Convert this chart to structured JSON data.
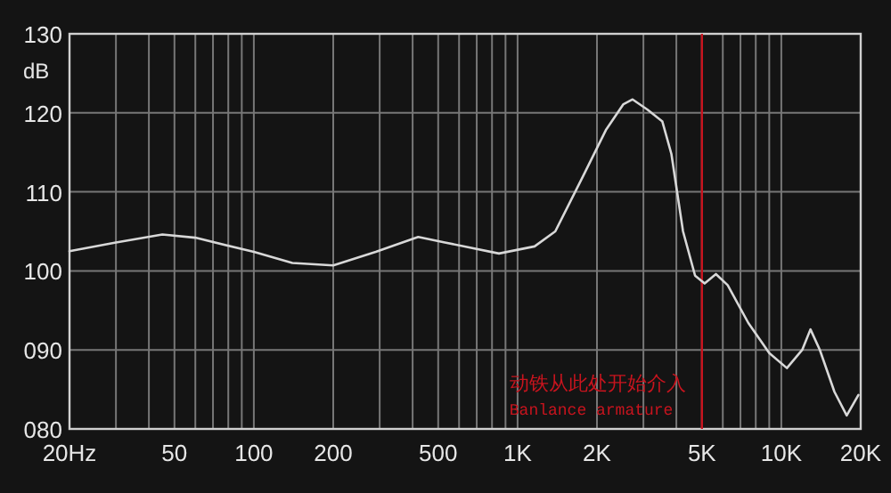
{
  "chart_data": {
    "type": "line",
    "ylabel": "dB",
    "log": "x",
    "grid": true,
    "marker": "none",
    "line_style": "solid",
    "xlim": [
      20,
      20000
    ],
    "ylim": [
      80,
      130
    ],
    "xticks": [
      {
        "value": 20,
        "label": "20Hz"
      },
      {
        "value": 30,
        "label": null
      },
      {
        "value": 40,
        "label": null
      },
      50,
      {
        "value": 60,
        "label": null
      },
      {
        "value": 70,
        "label": null
      },
      {
        "value": 80,
        "label": null
      },
      {
        "value": 90,
        "label": null
      },
      100,
      200,
      {
        "value": 300,
        "label": null
      },
      {
        "value": 400,
        "label": null
      },
      500,
      {
        "value": 600,
        "label": null
      },
      {
        "value": 700,
        "label": null
      },
      {
        "value": 800,
        "label": null
      },
      {
        "value": 900,
        "label": null
      },
      {
        "value": 1000,
        "label": "1K"
      },
      {
        "value": 2000,
        "label": "2K"
      },
      {
        "value": 3000,
        "label": null
      },
      {
        "value": 4000,
        "label": null
      },
      {
        "value": 5000,
        "label": "5K"
      },
      {
        "value": 6000,
        "label": null
      },
      {
        "value": 7000,
        "label": null
      },
      {
        "value": 8000,
        "label": null
      },
      {
        "value": 9000,
        "label": null
      },
      {
        "value": 10000,
        "label": "10K"
      },
      {
        "value": 20000,
        "label": "20K"
      }
    ],
    "yticks": [
      {
        "value": 80,
        "label": "080"
      },
      {
        "value": 90,
        "label": "090"
      },
      100,
      110,
      120,
      130
    ],
    "series": [
      {
        "color": "#d8d8d8",
        "x": [
          20,
          30,
          45,
          60,
          100,
          140,
          200,
          290,
          420,
          530,
          850,
          1160,
          1390,
          1760,
          2160,
          2520,
          2730,
          3110,
          3540,
          3830,
          4240,
          4710,
          5120,
          5650,
          6260,
          7500,
          9000,
          10500,
          12000,
          12900,
          14000,
          15900,
          17700,
          19600
        ],
        "values": [
          102.5,
          103.6,
          104.6,
          104.2,
          102.4,
          101,
          100.7,
          102.4,
          104.3,
          103.6,
          102.2,
          103.1,
          105,
          111.8,
          117.8,
          121.1,
          121.7,
          120.4,
          118.9,
          114.8,
          105,
          99.4,
          98.4,
          99.6,
          98.2,
          93.4,
          89.6,
          87.7,
          90,
          92.6,
          90,
          84.7,
          81.7,
          84.3
        ]
      }
    ],
    "ref_lines": [
      {
        "axis": "x",
        "value": 5000,
        "label": "动铁从此处开始介入",
        "color": "#c8141e"
      }
    ],
    "annotations": [
      "Banlance armature"
    ]
  }
}
